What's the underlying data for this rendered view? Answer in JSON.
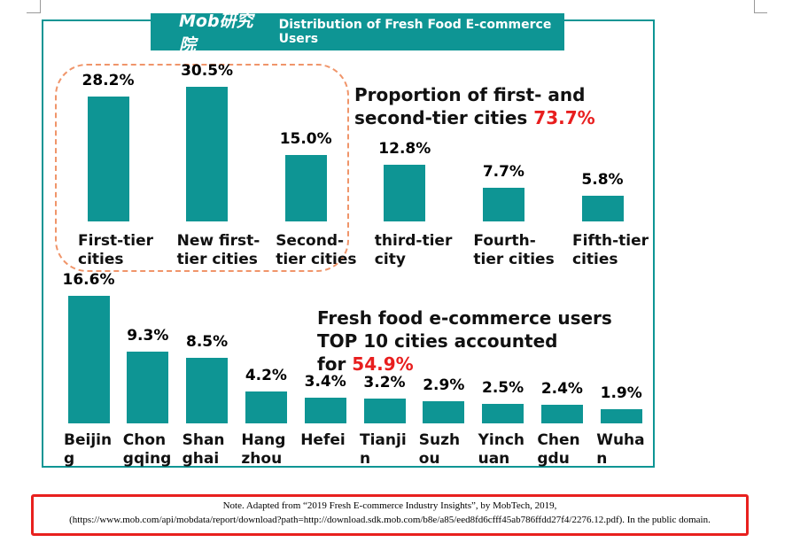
{
  "logo": "Mob研究院",
  "title": "Distribution of Fresh Food E-commerce Users",
  "chart_data": [
    {
      "type": "bar",
      "color": "#0e9594",
      "categories": [
        "First-tier cities",
        "New first-tier cities",
        "Second-tier cities",
        "third-tier city",
        "Fourth-tier cities",
        "Fifth-tier cities"
      ],
      "values": [
        28.2,
        30.5,
        15.0,
        12.8,
        7.7,
        5.8
      ],
      "value_labels": [
        "28.2%",
        "30.5%",
        "15.0%",
        "12.8%",
        "7.7%",
        "5.8%"
      ],
      "annotation": "Proportion of first- and second-tier cities",
      "annotation_highlight": "73.7%"
    },
    {
      "type": "bar",
      "color": "#0e9594",
      "categories": [
        "Beijing",
        "Chongqing",
        "Shanghai",
        "Hangzhou",
        "Hefei",
        "Tianjin",
        "Suzhou",
        "Yinchuan",
        "Chengdu",
        "Wuhan"
      ],
      "values": [
        16.6,
        9.3,
        8.5,
        4.2,
        3.4,
        3.2,
        2.9,
        2.5,
        2.4,
        1.9
      ],
      "value_labels": [
        "16.6%",
        "9.3%",
        "8.5%",
        "4.2%",
        "3.4%",
        "3.2%",
        "2.9%",
        "2.5%",
        "2.4%",
        "1.9%"
      ],
      "annotation": "Fresh food e-commerce users TOP 10 cities accounted for",
      "annotation_highlight": "54.9%"
    }
  ],
  "note": {
    "line1": "Note. Adapted from “2019 Fresh E-commerce Industry Insights”, by MobTech, 2019,",
    "line2": "(https://www.mob.com/api/mobdata/report/download?path=http://download.sdk.mob.com/b8e/a85/eed8fd6cfff45ab786ffdd27f4/2276.12.pdf). In the public domain."
  }
}
